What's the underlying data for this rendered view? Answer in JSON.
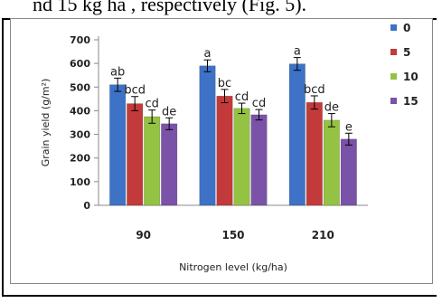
{
  "caption_fragment": "nd 15 kg ha , respectively (Fig. 5).",
  "chart_data": {
    "type": "bar",
    "categories": [
      "90",
      "150",
      "210"
    ],
    "series": [
      {
        "name": "0",
        "color": "#3d72c6",
        "values": [
          510,
          590,
          598
        ],
        "errors": [
          28,
          25,
          27
        ],
        "letters": [
          "ab",
          "a",
          "a"
        ]
      },
      {
        "name": "5",
        "color": "#c33a3a",
        "values": [
          430,
          462,
          435
        ],
        "errors": [
          30,
          28,
          28
        ],
        "letters": [
          "bcd",
          "bc",
          "bcd"
        ]
      },
      {
        "name": "10",
        "color": "#94c242",
        "values": [
          375,
          410,
          360
        ],
        "errors": [
          28,
          22,
          28
        ],
        "letters": [
          "cd",
          "cd",
          "de"
        ]
      },
      {
        "name": "15",
        "color": "#7a52a8",
        "values": [
          345,
          383,
          280
        ],
        "errors": [
          25,
          22,
          25
        ],
        "letters": [
          "de",
          "cd",
          "e"
        ]
      }
    ],
    "xlabel": "Nitrogen level (kg/ha)",
    "ylabel": "Grain yield (g/m²)",
    "ylim": [
      0,
      700
    ],
    "yticks": [
      0,
      100,
      200,
      300,
      400,
      500,
      600,
      700
    ],
    "grid": false,
    "legend": "right"
  }
}
